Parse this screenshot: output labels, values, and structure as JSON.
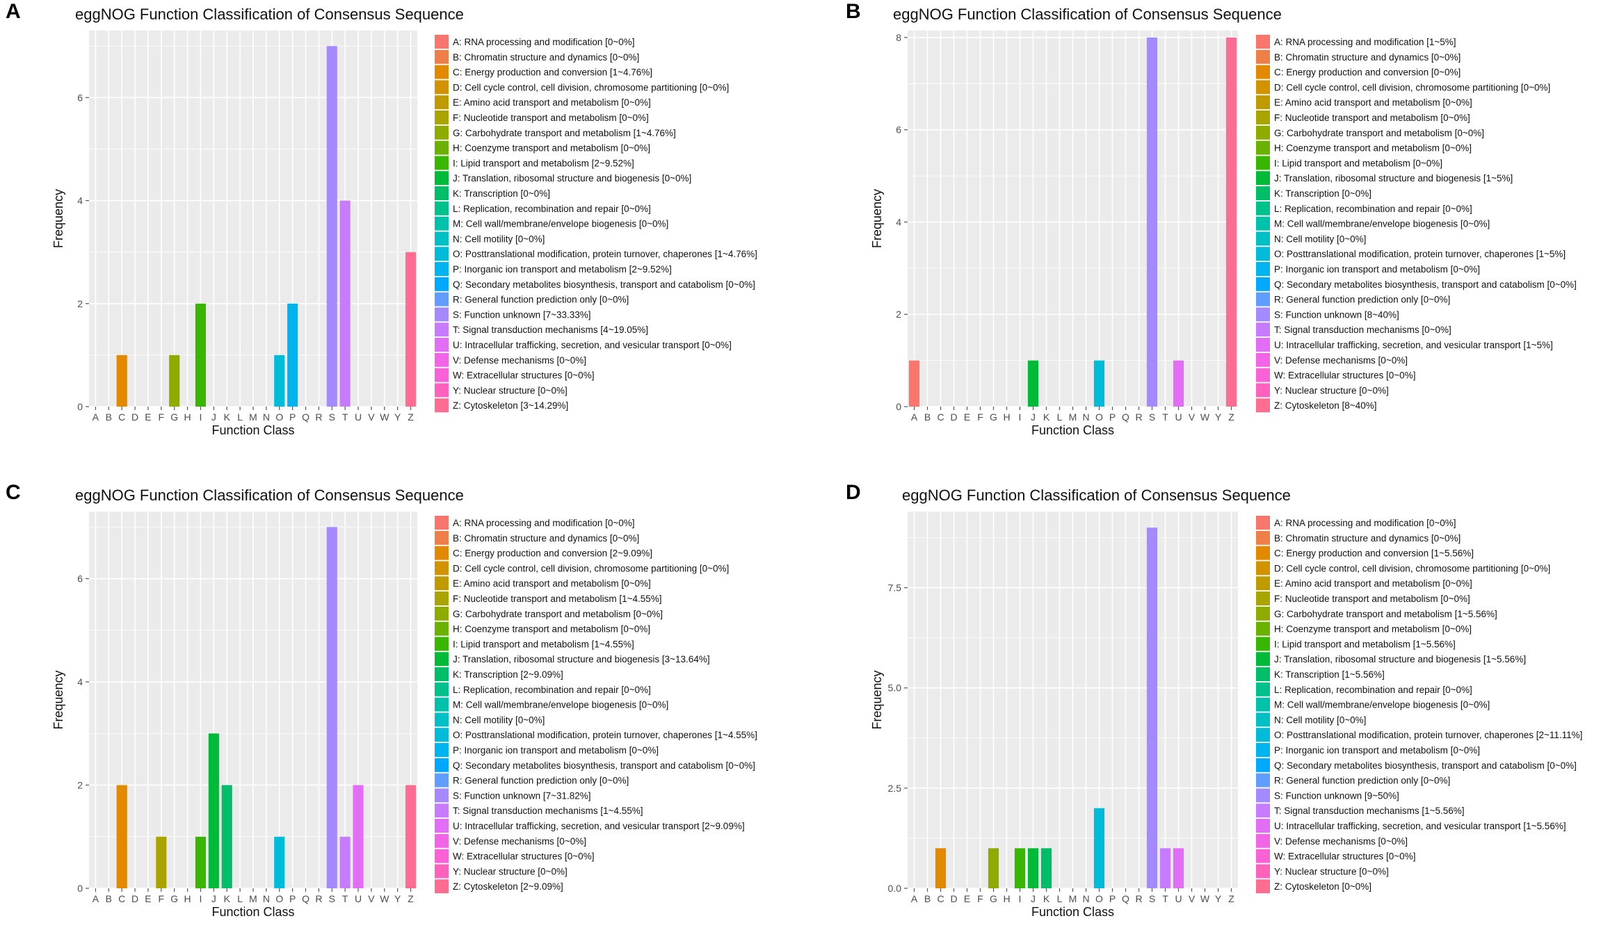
{
  "figure_title": "eggNOG function classification panels A-D",
  "chart_data": [
    {
      "panel": "A",
      "type": "bar",
      "title": "eggNOG Function Classification of Consensus Sequence",
      "xlabel": "Function Class",
      "ylabel": "Frequency",
      "ylim": [
        0,
        7.3
      ],
      "yticks": [
        0,
        2,
        4,
        6
      ],
      "ytick_labels": [
        "0",
        "2",
        "4",
        "6"
      ],
      "categories": [
        "A",
        "B",
        "C",
        "D",
        "E",
        "F",
        "G",
        "H",
        "I",
        "J",
        "K",
        "L",
        "M",
        "N",
        "O",
        "P",
        "Q",
        "R",
        "S",
        "T",
        "U",
        "V",
        "W",
        "Y",
        "Z"
      ],
      "values": [
        0,
        0,
        1,
        0,
        0,
        0,
        1,
        0,
        2,
        0,
        0,
        0,
        0,
        0,
        1,
        2,
        0,
        0,
        7,
        4,
        0,
        0,
        0,
        0,
        3
      ],
      "legend": [
        "A: RNA processing and modification [0~0%]",
        "B: Chromatin structure and dynamics [0~0%]",
        "C: Energy production and conversion [1~4.76%]",
        "D: Cell cycle control, cell division, chromosome partitioning [0~0%]",
        "E: Amino acid transport and metabolism [0~0%]",
        "F: Nucleotide transport and metabolism [0~0%]",
        "G: Carbohydrate transport and metabolism [1~4.76%]",
        "H: Coenzyme transport and metabolism [0~0%]",
        "I: Lipid transport and metabolism [2~9.52%]",
        "J: Translation, ribosomal structure and biogenesis [0~0%]",
        "K: Transcription [0~0%]",
        "L: Replication, recombination and repair [0~0%]",
        "M: Cell wall/membrane/envelope biogenesis [0~0%]",
        "N: Cell motility [0~0%]",
        "O: Posttranslational modification, protein turnover, chaperones [1~4.76%]",
        "P: Inorganic ion transport and metabolism [2~9.52%]",
        "Q: Secondary metabolites biosynthesis, transport and catabolism [0~0%]",
        "R: General function prediction only [0~0%]",
        "S: Function unknown [7~33.33%]",
        "T: Signal transduction mechanisms [4~19.05%]",
        "U: Intracellular trafficking, secretion, and vesicular transport [0~0%]",
        "V: Defense mechanisms [0~0%]",
        "W: Extracellular structures [0~0%]",
        "Y: Nuclear structure [0~0%]",
        "Z: Cytoskeleton [3~14.29%]"
      ]
    },
    {
      "panel": "B",
      "type": "bar",
      "title": "eggNOG Function Classification of Consensus Sequence",
      "xlabel": "Function Class",
      "ylabel": "Frequency",
      "ylim": [
        0,
        8.15
      ],
      "yticks": [
        0,
        2,
        4,
        6,
        8
      ],
      "ytick_labels": [
        "0",
        "2",
        "4",
        "6",
        "8"
      ],
      "categories": [
        "A",
        "B",
        "C",
        "D",
        "E",
        "F",
        "G",
        "H",
        "I",
        "J",
        "K",
        "L",
        "M",
        "N",
        "O",
        "P",
        "Q",
        "R",
        "S",
        "T",
        "U",
        "V",
        "W",
        "Y",
        "Z"
      ],
      "values": [
        1,
        0,
        0,
        0,
        0,
        0,
        0,
        0,
        0,
        1,
        0,
        0,
        0,
        0,
        1,
        0,
        0,
        0,
        8,
        0,
        1,
        0,
        0,
        0,
        8
      ],
      "legend": [
        "A: RNA processing and modification [1~5%]",
        "B: Chromatin structure and dynamics [0~0%]",
        "C: Energy production and conversion [0~0%]",
        "D: Cell cycle control, cell division, chromosome partitioning [0~0%]",
        "E: Amino acid transport and metabolism [0~0%]",
        "F: Nucleotide transport and metabolism [0~0%]",
        "G: Carbohydrate transport and metabolism [0~0%]",
        "H: Coenzyme transport and metabolism [0~0%]",
        "I: Lipid transport and metabolism [0~0%]",
        "J: Translation, ribosomal structure and biogenesis [1~5%]",
        "K: Transcription [0~0%]",
        "L: Replication, recombination and repair [0~0%]",
        "M: Cell wall/membrane/envelope biogenesis [0~0%]",
        "N: Cell motility [0~0%]",
        "O: Posttranslational modification, protein turnover, chaperones [1~5%]",
        "P: Inorganic ion transport and metabolism [0~0%]",
        "Q: Secondary metabolites biosynthesis, transport and catabolism [0~0%]",
        "R: General function prediction only [0~0%]",
        "S: Function unknown [8~40%]",
        "T: Signal transduction mechanisms [0~0%]",
        "U: Intracellular trafficking, secretion, and vesicular transport [1~5%]",
        "V: Defense mechanisms [0~0%]",
        "W: Extracellular structures [0~0%]",
        "Y: Nuclear structure [0~0%]",
        "Z: Cytoskeleton [8~40%]"
      ]
    },
    {
      "panel": "C",
      "type": "bar",
      "title": "eggNOG Function Classification of Consensus Sequence",
      "xlabel": "Function Class",
      "ylabel": "Frequency",
      "ylim": [
        0,
        7.3
      ],
      "yticks": [
        0,
        2,
        4,
        6
      ],
      "ytick_labels": [
        "0",
        "2",
        "4",
        "6"
      ],
      "categories": [
        "A",
        "B",
        "C",
        "D",
        "E",
        "F",
        "G",
        "H",
        "I",
        "J",
        "K",
        "L",
        "M",
        "N",
        "O",
        "P",
        "Q",
        "R",
        "S",
        "T",
        "U",
        "V",
        "W",
        "Y",
        "Z"
      ],
      "values": [
        0,
        0,
        2,
        0,
        0,
        1,
        0,
        0,
        1,
        3,
        2,
        0,
        0,
        0,
        1,
        0,
        0,
        0,
        7,
        1,
        2,
        0,
        0,
        0,
        2
      ],
      "legend": [
        "A: RNA processing and modification [0~0%]",
        "B: Chromatin structure and dynamics [0~0%]",
        "C: Energy production and conversion [2~9.09%]",
        "D: Cell cycle control, cell division, chromosome partitioning [0~0%]",
        "E: Amino acid transport and metabolism [0~0%]",
        "F: Nucleotide transport and metabolism [1~4.55%]",
        "G: Carbohydrate transport and metabolism [0~0%]",
        "H: Coenzyme transport and metabolism [0~0%]",
        "I: Lipid transport and metabolism [1~4.55%]",
        "J: Translation, ribosomal structure and biogenesis [3~13.64%]",
        "K: Transcription [2~9.09%]",
        "L: Replication, recombination and repair [0~0%]",
        "M: Cell wall/membrane/envelope biogenesis [0~0%]",
        "N: Cell motility [0~0%]",
        "O: Posttranslational modification, protein turnover, chaperones [1~4.55%]",
        "P: Inorganic ion transport and metabolism [0~0%]",
        "Q: Secondary metabolites biosynthesis, transport and catabolism [0~0%]",
        "R: General function prediction only [0~0%]",
        "S: Function unknown [7~31.82%]",
        "T: Signal transduction mechanisms [1~4.55%]",
        "U: Intracellular trafficking, secretion, and vesicular transport [2~9.09%]",
        "V: Defense mechanisms [0~0%]",
        "W: Extracellular structures [0~0%]",
        "Y: Nuclear structure [0~0%]",
        "Z: Cytoskeleton [2~9.09%]"
      ]
    },
    {
      "panel": "D",
      "type": "bar",
      "title": "eggNOG Function Classification of Consensus Sequence",
      "xlabel": "Function Class",
      "ylabel": "Frequency",
      "ylim": [
        0,
        9.4
      ],
      "yticks": [
        0,
        2.5,
        5,
        7.5
      ],
      "ytick_labels": [
        "0.0",
        "2.5",
        "5.0",
        "7.5"
      ],
      "categories": [
        "A",
        "B",
        "C",
        "D",
        "E",
        "F",
        "G",
        "H",
        "I",
        "J",
        "K",
        "L",
        "M",
        "N",
        "O",
        "P",
        "Q",
        "R",
        "S",
        "T",
        "U",
        "V",
        "W",
        "Y",
        "Z"
      ],
      "values": [
        0,
        0,
        1,
        0,
        0,
        0,
        1,
        0,
        1,
        1,
        1,
        0,
        0,
        0,
        2,
        0,
        0,
        0,
        9,
        1,
        1,
        0,
        0,
        0,
        0
      ],
      "legend": [
        "A: RNA processing and modification [0~0%]",
        "B: Chromatin structure and dynamics [0~0%]",
        "C: Energy production and conversion [1~5.56%]",
        "D: Cell cycle control, cell division, chromosome partitioning [0~0%]",
        "E: Amino acid transport and metabolism [0~0%]",
        "F: Nucleotide transport and metabolism [0~0%]",
        "G: Carbohydrate transport and metabolism [1~5.56%]",
        "H: Coenzyme transport and metabolism [0~0%]",
        "I: Lipid transport and metabolism [1~5.56%]",
        "J: Translation, ribosomal structure and biogenesis [1~5.56%]",
        "K: Transcription [1~5.56%]",
        "L: Replication, recombination and repair [0~0%]",
        "M: Cell wall/membrane/envelope biogenesis [0~0%]",
        "N: Cell motility [0~0%]",
        "O: Posttranslational modification, protein turnover, chaperones [2~11.11%]",
        "P: Inorganic ion transport and metabolism [0~0%]",
        "Q: Secondary metabolites biosynthesis, transport and catabolism [0~0%]",
        "R: General function prediction only [0~0%]",
        "S: Function unknown [9~50%]",
        "T: Signal transduction mechanisms [1~5.56%]",
        "U: Intracellular trafficking, secretion, and vesicular transport [1~5.56%]",
        "V: Defense mechanisms [0~0%]",
        "W: Extracellular structures [0~0%]",
        "Y: Nuclear structure [0~0%]",
        "Z: Cytoskeleton [0~0%]"
      ]
    }
  ],
  "colors": [
    "#F8766D",
    "#EF7F49",
    "#E38900",
    "#D39200",
    "#C09B00",
    "#A9A400",
    "#8EAB00",
    "#6BB100",
    "#39B600",
    "#00BA38",
    "#00BE67",
    "#00C08B",
    "#00C1AA",
    "#00C0C6",
    "#00BCD8",
    "#00B4EF",
    "#00A9FF",
    "#619CFF",
    "#A58AFF",
    "#C77CFF",
    "#E36EF6",
    "#F265E7",
    "#FB61D7",
    "#FF62BC",
    "#FF6C91"
  ],
  "panel_bg": "#EBEBEB",
  "grid_color": "#FFFFFF"
}
